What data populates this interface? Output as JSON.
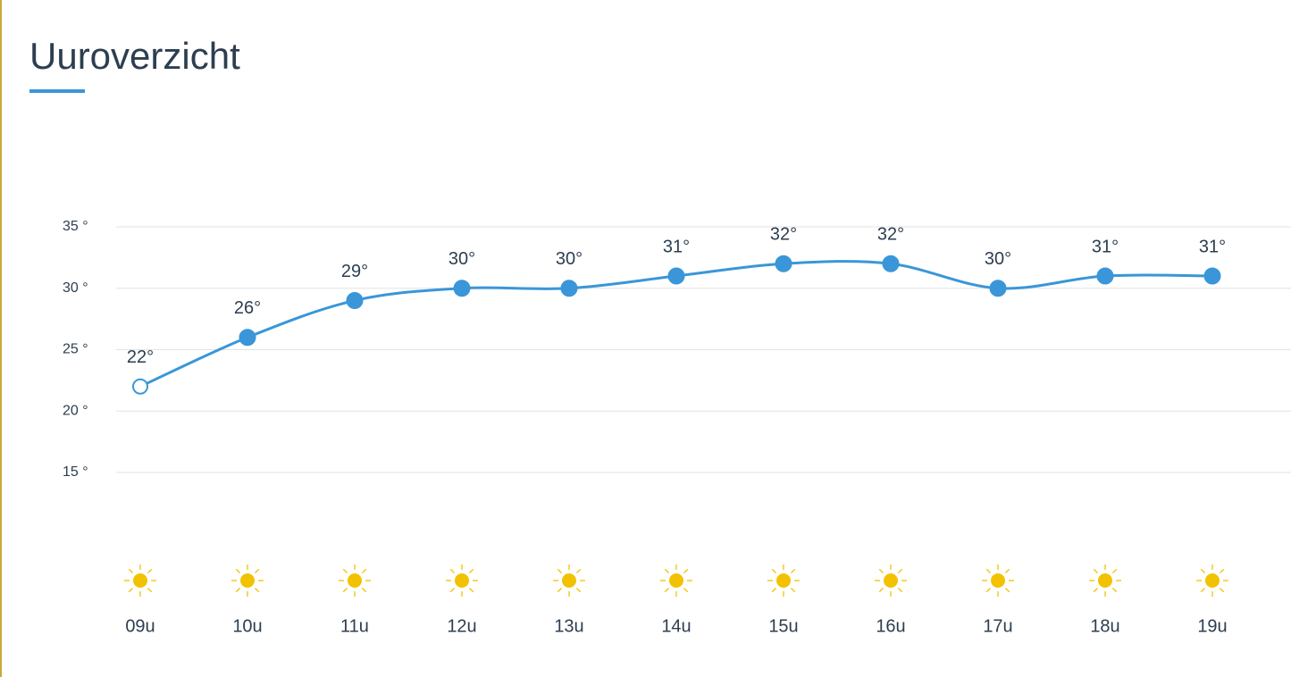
{
  "chart_data": {
    "type": "line",
    "title": "Uuroverzicht",
    "categories": [
      "09u",
      "10u",
      "11u",
      "12u",
      "13u",
      "14u",
      "15u",
      "16u",
      "17u",
      "18u",
      "19u"
    ],
    "series": [
      {
        "color": "#3a96d8",
        "values": [
          22,
          26,
          29,
          30,
          30,
          31,
          32,
          32,
          30,
          31,
          31
        ],
        "value_labels": [
          "22°",
          "26°",
          "29°",
          "30°",
          "30°",
          "31°",
          "32°",
          "32°",
          "30°",
          "31°",
          "31°"
        ]
      }
    ],
    "ylim": [
      15,
      35
    ],
    "yticks": [
      {
        "value": 15,
        "label": "15 °"
      },
      {
        "value": 20,
        "label": "20 °"
      },
      {
        "value": 25,
        "label": "25 °"
      },
      {
        "value": 30,
        "label": "30 °"
      },
      {
        "value": 35,
        "label": "35 °"
      }
    ],
    "grid": true
  }
}
